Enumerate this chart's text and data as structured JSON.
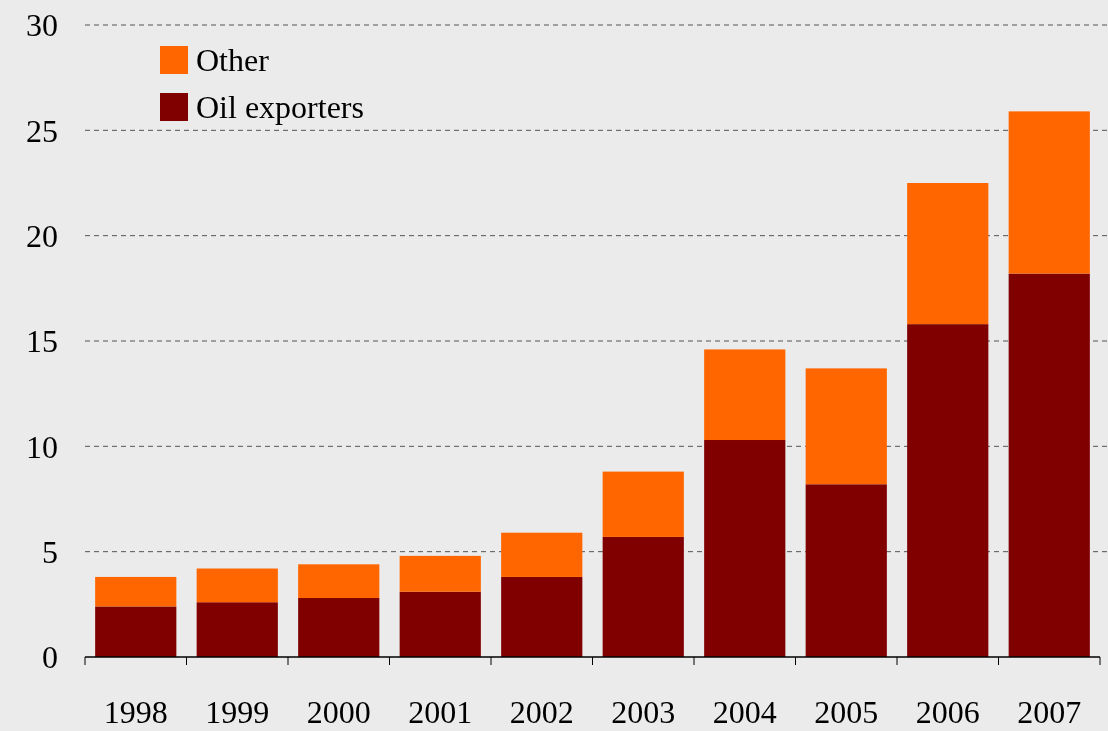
{
  "chart_data": {
    "type": "bar",
    "stacked": true,
    "categories": [
      "1998",
      "1999",
      "2000",
      "2001",
      "2002",
      "2003",
      "2004",
      "2005",
      "2006",
      "2007"
    ],
    "series": [
      {
        "name": "Oil exporters",
        "color": "#800000",
        "values": [
          2.4,
          2.6,
          2.8,
          3.1,
          3.8,
          5.7,
          10.3,
          8.2,
          15.8,
          18.2
        ]
      },
      {
        "name": "Other",
        "color": "#ff6600",
        "values": [
          1.4,
          1.6,
          1.6,
          1.7,
          2.1,
          3.1,
          4.3,
          5.5,
          6.7,
          7.7
        ]
      }
    ],
    "ylim": [
      0,
      30
    ],
    "yticks": [
      0,
      5,
      10,
      15,
      20,
      25,
      30
    ],
    "grid": "y",
    "legend": "top left"
  }
}
